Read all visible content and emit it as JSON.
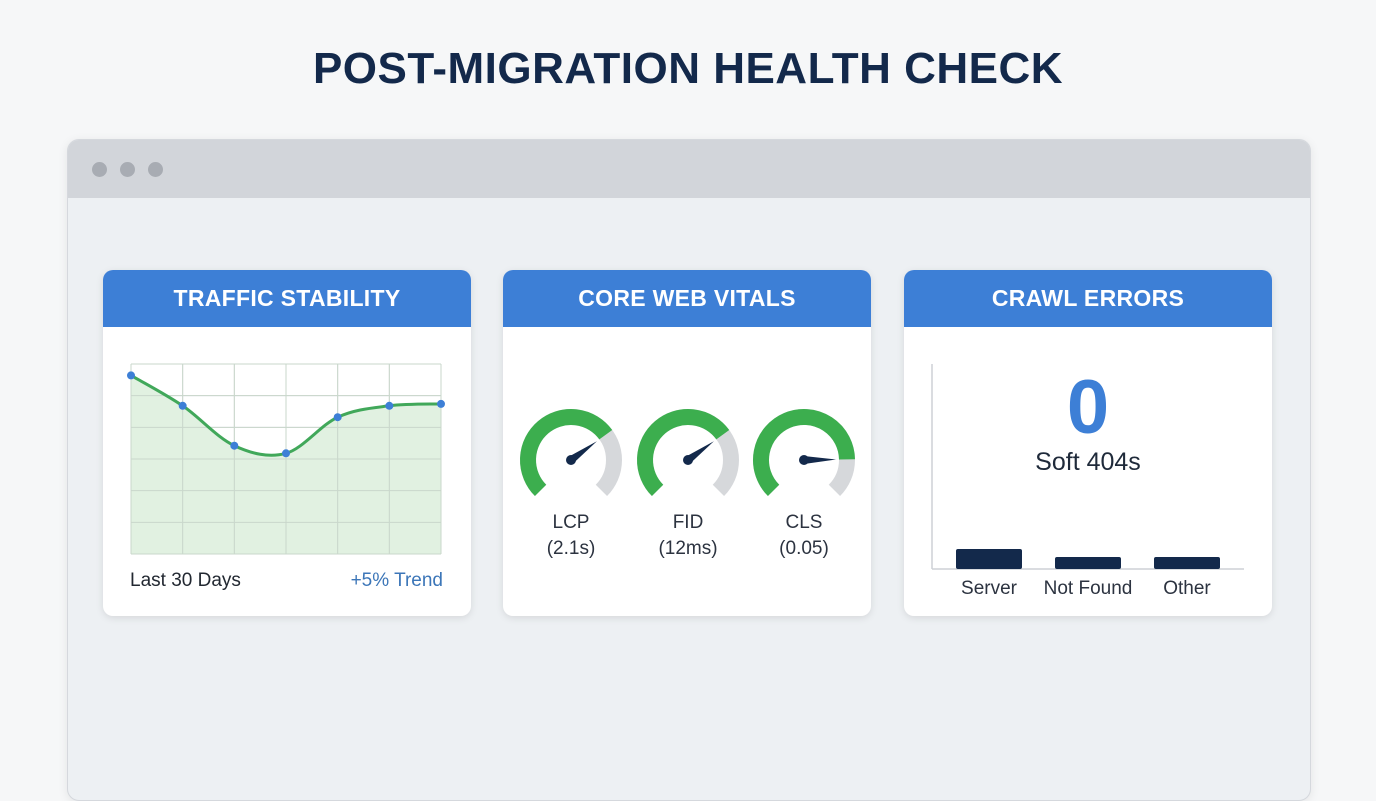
{
  "title": "POST-MIGRATION HEALTH CHECK",
  "colors": {
    "title": "#13294b",
    "header": "#3d7fd6",
    "line": "#41a85a",
    "fill": "#dcefdc",
    "point": "#3d7fd6",
    "gauge_good": "#3cae4e",
    "gauge_track": "#d6d8db",
    "needle": "#13294b",
    "bar": "#13294b"
  },
  "cards": {
    "traffic": {
      "title": "TRAFFIC STABILITY",
      "footer_left": "Last 30 Days",
      "footer_right": "+5% Trend"
    },
    "vitals": {
      "title": "CORE WEB VITALS",
      "gauges": [
        {
          "name": "LCP",
          "value": "(2.1s)",
          "level": 0.7
        },
        {
          "name": "FID",
          "value": "(12ms)",
          "level": 0.7
        },
        {
          "name": "CLS",
          "value": "(0.05)",
          "level": 0.83
        }
      ]
    },
    "crawl": {
      "title": "CRAWL ERRORS",
      "big_value": "0",
      "big_label": "Soft 404s"
    }
  },
  "chart_data": [
    {
      "type": "area",
      "title": "TRAFFIC STABILITY",
      "x": [
        0,
        1,
        2,
        3,
        4,
        5,
        6
      ],
      "values": [
        94,
        78,
        57,
        53,
        72,
        78,
        79
      ],
      "ylim": [
        0,
        100
      ],
      "grid": true,
      "xlabel": "Last 30 Days",
      "annotation": "+5% Trend"
    },
    {
      "type": "bar",
      "title": "CRAWL ERRORS",
      "categories": [
        "Server",
        "Not Found",
        "Other"
      ],
      "values": [
        1.0,
        0.6,
        0.6
      ]
    }
  ]
}
